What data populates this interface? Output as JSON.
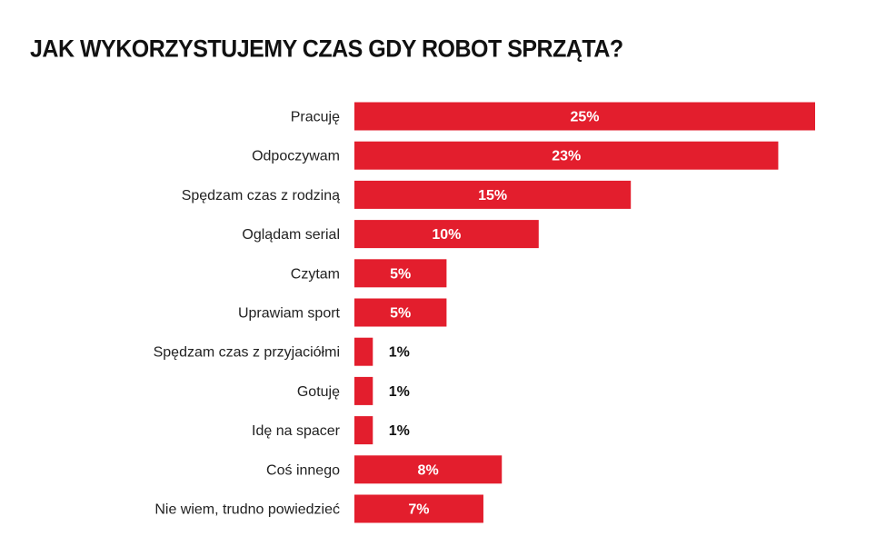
{
  "chart_data": {
    "type": "bar",
    "orientation": "horizontal",
    "title": "JAK WYKORZYSTUJEMY CZAS GDY ROBOT SPRZĄTA?",
    "xlabel": "",
    "ylabel": "",
    "xlim": [
      0,
      25
    ],
    "grid": false,
    "unit": "%",
    "bar_color": "#e31e2d",
    "categories": [
      "Pracuję",
      "Odpoczywam",
      "Spędzam czas z rodziną",
      "Oglądam serial",
      "Czytam",
      "Uprawiam sport",
      "Spędzam czas z przyjaciółmi",
      "Gotuję",
      "Idę na spacer",
      "Coś innego",
      "Nie wiem, trudno powiedzieć"
    ],
    "values": [
      25,
      23,
      15,
      10,
      5,
      5,
      1,
      1,
      1,
      8,
      7
    ],
    "labels": [
      "25%",
      "23%",
      "15%",
      "10%",
      "5%",
      "5%",
      "1%",
      "1%",
      "1%",
      "8%",
      "7%"
    ]
  }
}
